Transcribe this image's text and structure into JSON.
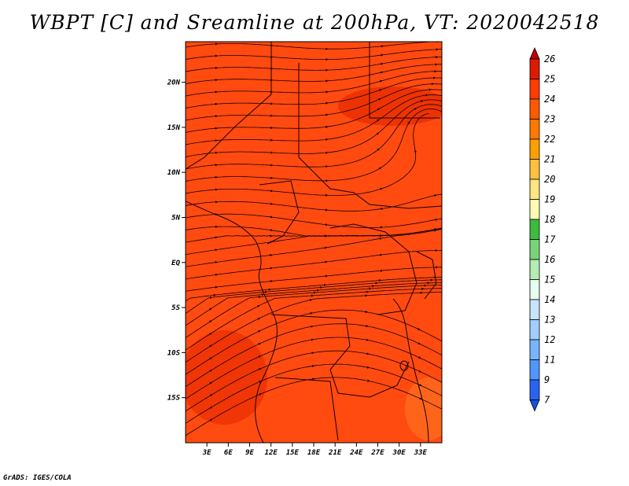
{
  "title": "WBPT [C] and Sreamline at 200hPa, VT: 2020042518",
  "credit": "GrADS: IGES/COLA",
  "map": {
    "lon_range": [
      0,
      36
    ],
    "lat_range": [
      -20,
      24.5
    ],
    "fill_color": "#ff4a10",
    "lon_ticks": [
      {
        "label": "3E",
        "value": 3
      },
      {
        "label": "6E",
        "value": 6
      },
      {
        "label": "9E",
        "value": 9
      },
      {
        "label": "12E",
        "value": 12
      },
      {
        "label": "15E",
        "value": 15
      },
      {
        "label": "18E",
        "value": 18
      },
      {
        "label": "21E",
        "value": 21
      },
      {
        "label": "24E",
        "value": 24
      },
      {
        "label": "27E",
        "value": 27
      },
      {
        "label": "30E",
        "value": 30
      },
      {
        "label": "33E",
        "value": 33
      }
    ],
    "lat_ticks": [
      {
        "label": "20N",
        "value": 20
      },
      {
        "label": "15N",
        "value": 15
      },
      {
        "label": "10N",
        "value": 10
      },
      {
        "label": "5N",
        "value": 5
      },
      {
        "label": "EQ",
        "value": 0
      },
      {
        "label": "5S",
        "value": -5
      },
      {
        "label": "10S",
        "value": -10
      },
      {
        "label": "15S",
        "value": -15
      }
    ]
  },
  "colorbar": {
    "labels": [
      "26",
      "25",
      "24",
      "23",
      "22",
      "21",
      "20",
      "19",
      "18",
      "17",
      "16",
      "15",
      "14",
      "13",
      "12",
      "11",
      "9",
      "7"
    ],
    "colors": [
      "#c00000",
      "#e01a00",
      "#ff3c00",
      "#ff5a00",
      "#ff7800",
      "#ff9f00",
      "#ffc040",
      "#ffe680",
      "#fffab4",
      "#3cbc3c",
      "#78d478",
      "#b4ecb4",
      "#e6fff0",
      "#c8e4ff",
      "#a0cfff",
      "#78b4ff",
      "#5096ff",
      "#2864f0",
      "#1450dc"
    ]
  }
}
